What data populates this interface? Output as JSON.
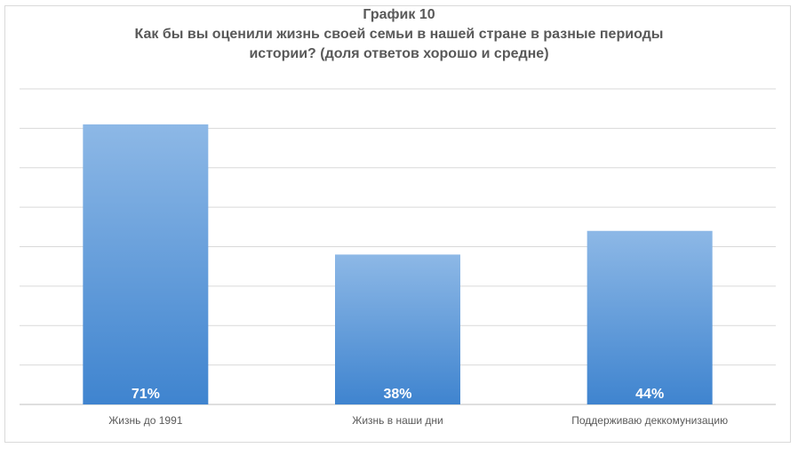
{
  "chart_data": {
    "type": "bar",
    "title": "График 10",
    "subtitle_line1": "Как бы вы оценили жизнь своей семьи в нашей стране в разные периоды",
    "subtitle_line2": "истории? (доля ответов хорошо и средне)",
    "categories": [
      "Жизнь до 1991",
      "Жизнь в наши дни",
      "Поддерживаю деккомунизацию"
    ],
    "values": [
      71,
      38,
      44
    ],
    "data_labels": [
      "71%",
      "38%",
      "44%"
    ],
    "ylim": [
      0,
      80
    ],
    "grid": true,
    "bar_color_top": "#8db8e6",
    "bar_color_bottom": "#3f84cf"
  }
}
